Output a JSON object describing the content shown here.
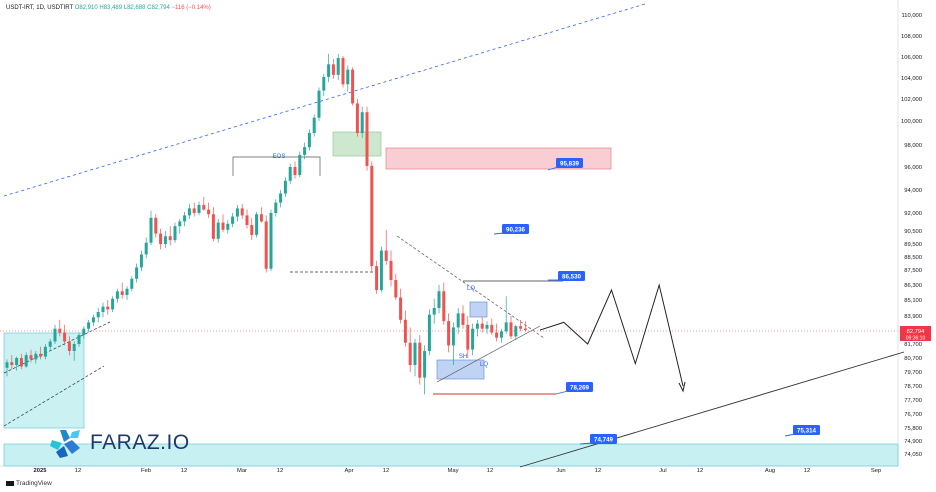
{
  "header": {
    "symbol": "USDT-IRT, 1D, USDTIRT",
    "open": "O82,910",
    "high": "H83,489",
    "low": "L82,688",
    "close": "C82,794",
    "change": "−116 (−0.14%)"
  },
  "footer": {
    "tradingview": "TradingView"
  },
  "logo": {
    "text": "FARAZ.IO"
  },
  "colors": {
    "up": "#26a69a",
    "down": "#ef5350",
    "accent": "#2962ff",
    "price_tag": "#f23645",
    "supply_zone": "#f7c6cc",
    "demand_zone": "#b9ecef",
    "green_zone": "#c8e6c9",
    "blue_zone": "#aac4f2"
  },
  "chart_data": {
    "type": "candlestick",
    "title": "",
    "xlabel": "",
    "ylabel": "",
    "x_ticks": [
      "2025",
      "12",
      "Feb",
      "12",
      "Mar",
      "12",
      "Apr",
      "12",
      "May",
      "12",
      "Jun",
      "12",
      "Jul",
      "12",
      "Aug",
      "12",
      "Sep"
    ],
    "y_ticks": [
      110000,
      108000,
      106000,
      104000,
      102000,
      100000,
      98000,
      96000,
      94000,
      92000,
      90500,
      89500,
      88500,
      87500,
      86300,
      85100,
      83900,
      81700,
      80700,
      79700,
      78700,
      77700,
      76700,
      75800,
      74900,
      74050
    ],
    "y_tick_labels": [
      "110,000",
      "108,000",
      "106,000",
      "104,000",
      "102,000",
      "100,000",
      "98,000",
      "96,000",
      "94,000",
      "92,000",
      "90,500",
      "89,500",
      "88,500",
      "87,500",
      "86,300",
      "85,100",
      "83,900",
      "81,700",
      "80,700",
      "79,700",
      "78,700",
      "77,700",
      "76,700",
      "75,800",
      "74,900",
      "74,050"
    ],
    "last_price": {
      "value": "82,794",
      "countdown": "09:36:10"
    },
    "price_labels": [
      {
        "text": "95,839",
        "value": 95839
      },
      {
        "text": "90,236",
        "value": 90236
      },
      {
        "text": "86,530",
        "value": 86530
      },
      {
        "text": "78,269",
        "value": 78269
      },
      {
        "text": "74,749",
        "value": 74749
      },
      {
        "text": "75,314",
        "value": 75314
      }
    ],
    "annotations": [
      "EOS",
      "LQ",
      "SH",
      "LQ"
    ],
    "series": [
      {
        "name": "",
        "candles": [
          [
            80000,
            80600,
            79400,
            80400
          ],
          [
            80400,
            80900,
            79900,
            80200
          ],
          [
            80200,
            80800,
            79800,
            80700
          ],
          [
            80700,
            81000,
            79900,
            80100
          ],
          [
            80100,
            81100,
            80000,
            80900
          ],
          [
            80900,
            81300,
            80400,
            80600
          ],
          [
            80600,
            81200,
            80300,
            81000
          ],
          [
            81000,
            81500,
            80600,
            80800
          ],
          [
            80800,
            81700,
            80600,
            81500
          ],
          [
            81500,
            82100,
            81200,
            81900
          ],
          [
            81900,
            83200,
            81700,
            82900
          ],
          [
            82900,
            83600,
            82300,
            82600
          ],
          [
            82600,
            83200,
            81600,
            81900
          ],
          [
            81900,
            82300,
            80900,
            81200
          ],
          [
            81200,
            81900,
            80500,
            81700
          ],
          [
            81700,
            82600,
            81500,
            82400
          ],
          [
            82400,
            83100,
            82100,
            82900
          ],
          [
            82900,
            83600,
            82600,
            83400
          ],
          [
            83400,
            84000,
            83100,
            83800
          ],
          [
            83800,
            84500,
            83400,
            84200
          ],
          [
            84200,
            84900,
            83800,
            84600
          ],
          [
            84600,
            85100,
            84000,
            84400
          ],
          [
            84400,
            85400,
            84200,
            85200
          ],
          [
            85200,
            86000,
            84900,
            85800
          ],
          [
            85800,
            86500,
            85200,
            85500
          ],
          [
            85500,
            86200,
            85100,
            86000
          ],
          [
            86000,
            87000,
            85800,
            86800
          ],
          [
            86800,
            88000,
            86500,
            87700
          ],
          [
            87700,
            89000,
            87400,
            88700
          ],
          [
            88700,
            90000,
            88400,
            89600
          ],
          [
            89600,
            92200,
            89400,
            91600
          ],
          [
            91600,
            91900,
            90000,
            90300
          ],
          [
            90300,
            90700,
            89100,
            89500
          ],
          [
            89500,
            90500,
            89200,
            90100
          ],
          [
            90100,
            90900,
            89400,
            89800
          ],
          [
            89800,
            91200,
            89600,
            90900
          ],
          [
            90900,
            91500,
            90300,
            91300
          ],
          [
            91300,
            92100,
            90900,
            91800
          ],
          [
            91800,
            92800,
            91500,
            92400
          ],
          [
            92400,
            92900,
            91700,
            92000
          ],
          [
            92000,
            93000,
            91800,
            92700
          ],
          [
            92700,
            93400,
            92200,
            92300
          ],
          [
            92300,
            92900,
            91600,
            91900
          ],
          [
            91900,
            92500,
            89700,
            89900
          ],
          [
            89900,
            91500,
            89600,
            91200
          ],
          [
            91200,
            91900,
            90400,
            90600
          ],
          [
            90600,
            91400,
            90300,
            91100
          ],
          [
            91100,
            92000,
            90800,
            91700
          ],
          [
            91700,
            92700,
            91300,
            92400
          ],
          [
            92400,
            92800,
            91500,
            91800
          ],
          [
            91800,
            92300,
            90700,
            91000
          ],
          [
            91000,
            91600,
            89800,
            90200
          ],
          [
            90200,
            92100,
            90000,
            91900
          ],
          [
            91900,
            92500,
            91200,
            91300
          ],
          [
            91300,
            91800,
            87300,
            87600
          ],
          [
            87600,
            92300,
            87400,
            92000
          ],
          [
            92000,
            93200,
            91700,
            92900
          ],
          [
            92900,
            94000,
            92500,
            93700
          ],
          [
            93700,
            95100,
            93400,
            94800
          ],
          [
            94800,
            96300,
            94500,
            96000
          ],
          [
            96000,
            96500,
            95000,
            95300
          ],
          [
            95300,
            97400,
            95100,
            97100
          ],
          [
            97100,
            98200,
            96700,
            97800
          ],
          [
            97800,
            99300,
            97500,
            99000
          ],
          [
            99000,
            100600,
            98700,
            100300
          ],
          [
            100300,
            103100,
            100000,
            102800
          ],
          [
            102800,
            104400,
            102300,
            104100
          ],
          [
            104100,
            106300,
            103600,
            105300
          ],
          [
            105300,
            105800,
            103900,
            104300
          ],
          [
            104300,
            106300,
            103800,
            105900
          ],
          [
            105900,
            106100,
            103100,
            103400
          ],
          [
            103400,
            105200,
            102700,
            104800
          ],
          [
            104800,
            105000,
            101400,
            101600
          ],
          [
            101600,
            102000,
            98700,
            99000
          ],
          [
            99000,
            101300,
            98600,
            100800
          ],
          [
            100800,
            101300,
            95700,
            96100
          ],
          [
            96100,
            96500,
            87400,
            87800
          ],
          [
            87800,
            88200,
            85600,
            85900
          ],
          [
            85900,
            89300,
            85700,
            89000
          ],
          [
            89000,
            90600,
            87900,
            88200
          ],
          [
            88200,
            89000,
            86200,
            86700
          ],
          [
            86700,
            87200,
            85100,
            85300
          ],
          [
            85300,
            86000,
            83300,
            83600
          ],
          [
            83600,
            84300,
            81500,
            81800
          ],
          [
            81800,
            83000,
            79700,
            80200
          ],
          [
            80200,
            82100,
            79400,
            81800
          ],
          [
            81800,
            82400,
            78800,
            79300
          ],
          [
            79300,
            81600,
            78100,
            81200
          ],
          [
            81200,
            84400,
            80900,
            84000
          ],
          [
            84000,
            85200,
            83300,
            84500
          ],
          [
            84500,
            86300,
            84100,
            85800
          ],
          [
            85800,
            86500,
            83200,
            83500
          ],
          [
            83500,
            84100,
            81100,
            81600
          ],
          [
            81600,
            83400,
            80200,
            83000
          ],
          [
            83000,
            84500,
            82500,
            84100
          ],
          [
            84100,
            84700,
            82900,
            83200
          ],
          [
            83200,
            83900,
            80700,
            81300
          ],
          [
            81300,
            83300,
            80900,
            82900
          ],
          [
            82900,
            83600,
            82300,
            83300
          ],
          [
            83300,
            83800,
            82600,
            82900
          ],
          [
            82900,
            83500,
            82500,
            83200
          ],
          [
            83200,
            83700,
            82400,
            82600
          ],
          [
            82600,
            83300,
            81900,
            82200
          ],
          [
            82200,
            82900,
            81800,
            82700
          ],
          [
            82700,
            85400,
            82500,
            83400
          ],
          [
            83400,
            83900,
            82100,
            82300
          ],
          [
            82300,
            83200,
            82000,
            83100
          ],
          [
            83100,
            83600,
            82700,
            82900
          ],
          [
            82910,
            83489,
            82688,
            82794
          ]
        ]
      }
    ],
    "projection": [
      83400,
      81700,
      85900,
      80300,
      86300,
      78700
    ]
  }
}
